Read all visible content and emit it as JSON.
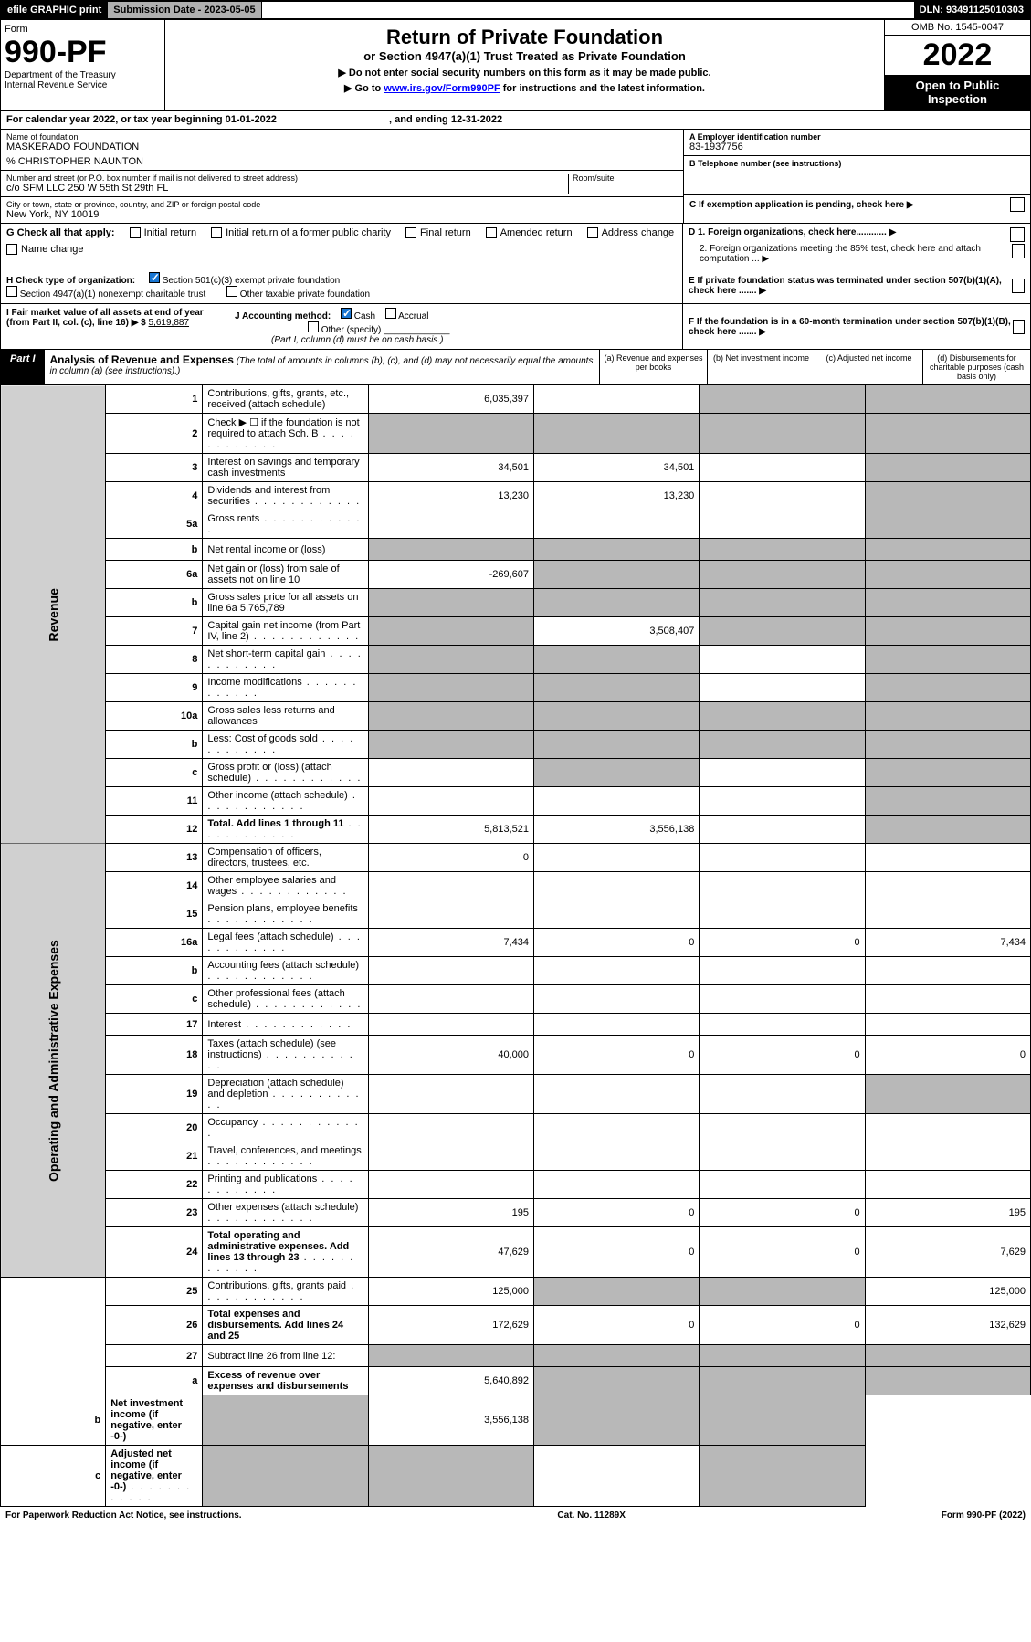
{
  "topbar": {
    "efile": "efile GRAPHIC print",
    "subdate_label": "Submission Date - 2023-05-05",
    "dln": "DLN: 93491125010303"
  },
  "header": {
    "form_label": "Form",
    "form_number": "990-PF",
    "dept": "Department of the Treasury",
    "irs": "Internal Revenue Service",
    "title": "Return of Private Foundation",
    "subtitle": "or Section 4947(a)(1) Trust Treated as Private Foundation",
    "note1": "▶ Do not enter social security numbers on this form as it may be made public.",
    "note2_pre": "▶ Go to ",
    "note2_link": "www.irs.gov/Form990PF",
    "note2_post": " for instructions and the latest information.",
    "omb": "OMB No. 1545-0047",
    "year": "2022",
    "open": "Open to Public Inspection"
  },
  "calendar": {
    "text_pre": "For calendar year 2022, or tax year beginning ",
    "begin": "01-01-2022",
    "mid": " , and ending ",
    "end": "12-31-2022"
  },
  "info": {
    "name_label": "Name of foundation",
    "name": "MASKERADO FOUNDATION",
    "care_of": "% CHRISTOPHER NAUNTON",
    "addr_label": "Number and street (or P.O. box number if mail is not delivered to street address)",
    "addr": "c/o SFM LLC 250 W 55th St 29th FL",
    "room_label": "Room/suite",
    "city_label": "City or town, state or province, country, and ZIP or foreign postal code",
    "city": "New York, NY  10019",
    "ein_label": "A Employer identification number",
    "ein": "83-1937756",
    "tel_label": "B Telephone number (see instructions)",
    "c_label": "C If exemption application is pending, check here ▶",
    "d1": "D 1. Foreign organizations, check here............ ▶",
    "d2": "2. Foreign organizations meeting the 85% test, check here and attach computation ... ▶",
    "e": "E  If private foundation status was terminated under section 507(b)(1)(A), check here ....... ▶",
    "f": "F  If the foundation is in a 60-month termination under section 507(b)(1)(B), check here ....... ▶"
  },
  "g": {
    "label": "G Check all that apply:",
    "opts": [
      "Initial return",
      "Initial return of a former public charity",
      "Final return",
      "Amended return",
      "Address change",
      "Name change"
    ]
  },
  "h": {
    "label": "H Check type of organization:",
    "opt1": "Section 501(c)(3) exempt private foundation",
    "opt2": "Section 4947(a)(1) nonexempt charitable trust",
    "opt3": "Other taxable private foundation"
  },
  "i": {
    "label": "I Fair market value of all assets at end of year (from Part II, col. (c), line 16) ▶ $",
    "value": "5,619,887"
  },
  "j": {
    "label": "J Accounting method:",
    "cash": "Cash",
    "accrual": "Accrual",
    "other": "Other (specify)",
    "note": "(Part I, column (d) must be on cash basis.)"
  },
  "part1": {
    "badge": "Part I",
    "title": "Analysis of Revenue and Expenses",
    "note": "(The total of amounts in columns (b), (c), and (d) may not necessarily equal the amounts in column (a) (see instructions).)",
    "col_a": "(a)   Revenue and expenses per books",
    "col_b": "(b)   Net investment income",
    "col_c": "(c)   Adjusted net income",
    "col_d": "(d)   Disbursements for charitable purposes (cash basis only)"
  },
  "sides": {
    "revenue": "Revenue",
    "opex": "Operating and Administrative Expenses"
  },
  "rows": [
    {
      "n": "1",
      "d": "Contributions, gifts, grants, etc., received (attach schedule)",
      "a": "6,035,397",
      "b": "",
      "c": "gray",
      "dd": "gray"
    },
    {
      "n": "2",
      "d": "Check ▶ ☐ if the foundation is not required to attach Sch. B",
      "a": "gray",
      "b": "gray",
      "c": "gray",
      "dd": "gray",
      "dots": true
    },
    {
      "n": "3",
      "d": "Interest on savings and temporary cash investments",
      "a": "34,501",
      "b": "34,501",
      "c": "",
      "dd": "gray"
    },
    {
      "n": "4",
      "d": "Dividends and interest from securities",
      "a": "13,230",
      "b": "13,230",
      "c": "",
      "dd": "gray",
      "dots": true
    },
    {
      "n": "5a",
      "d": "Gross rents",
      "a": "",
      "b": "",
      "c": "",
      "dd": "gray",
      "dots": true
    },
    {
      "n": "b",
      "d": "Net rental income or (loss)",
      "a": "gray",
      "b": "gray",
      "c": "gray",
      "dd": "gray"
    },
    {
      "n": "6a",
      "d": "Net gain or (loss) from sale of assets not on line 10",
      "a": "-269,607",
      "b": "gray",
      "c": "gray",
      "dd": "gray"
    },
    {
      "n": "b",
      "d": "Gross sales price for all assets on line 6a           5,765,789",
      "a": "gray",
      "b": "gray",
      "c": "gray",
      "dd": "gray"
    },
    {
      "n": "7",
      "d": "Capital gain net income (from Part IV, line 2)",
      "a": "gray",
      "b": "3,508,407",
      "c": "gray",
      "dd": "gray",
      "dots": true
    },
    {
      "n": "8",
      "d": "Net short-term capital gain",
      "a": "gray",
      "b": "gray",
      "c": "",
      "dd": "gray",
      "dots": true
    },
    {
      "n": "9",
      "d": "Income modifications",
      "a": "gray",
      "b": "gray",
      "c": "",
      "dd": "gray",
      "dots": true
    },
    {
      "n": "10a",
      "d": "Gross sales less returns and allowances",
      "a": "gray",
      "b": "gray",
      "c": "gray",
      "dd": "gray"
    },
    {
      "n": "b",
      "d": "Less: Cost of goods sold",
      "a": "gray",
      "b": "gray",
      "c": "gray",
      "dd": "gray",
      "dots": true
    },
    {
      "n": "c",
      "d": "Gross profit or (loss) (attach schedule)",
      "a": "",
      "b": "gray",
      "c": "",
      "dd": "gray",
      "dots": true
    },
    {
      "n": "11",
      "d": "Other income (attach schedule)",
      "a": "",
      "b": "",
      "c": "",
      "dd": "gray",
      "dots": true
    },
    {
      "n": "12",
      "d": "Total. Add lines 1 through 11",
      "a": "5,813,521",
      "b": "3,556,138",
      "c": "",
      "dd": "gray",
      "bold": true,
      "dots": true
    },
    {
      "n": "13",
      "d": "Compensation of officers, directors, trustees, etc.",
      "a": "0",
      "b": "",
      "c": "",
      "dd": ""
    },
    {
      "n": "14",
      "d": "Other employee salaries and wages",
      "a": "",
      "b": "",
      "c": "",
      "dd": "",
      "dots": true
    },
    {
      "n": "15",
      "d": "Pension plans, employee benefits",
      "a": "",
      "b": "",
      "c": "",
      "dd": "",
      "dots": true
    },
    {
      "n": "16a",
      "d": "Legal fees (attach schedule)",
      "a": "7,434",
      "b": "0",
      "c": "0",
      "dd": "7,434",
      "dots": true
    },
    {
      "n": "b",
      "d": "Accounting fees (attach schedule)",
      "a": "",
      "b": "",
      "c": "",
      "dd": "",
      "dots": true
    },
    {
      "n": "c",
      "d": "Other professional fees (attach schedule)",
      "a": "",
      "b": "",
      "c": "",
      "dd": "",
      "dots": true
    },
    {
      "n": "17",
      "d": "Interest",
      "a": "",
      "b": "",
      "c": "",
      "dd": "",
      "dots": true
    },
    {
      "n": "18",
      "d": "Taxes (attach schedule) (see instructions)",
      "a": "40,000",
      "b": "0",
      "c": "0",
      "dd": "0",
      "dots": true
    },
    {
      "n": "19",
      "d": "Depreciation (attach schedule) and depletion",
      "a": "",
      "b": "",
      "c": "",
      "dd": "gray",
      "dots": true
    },
    {
      "n": "20",
      "d": "Occupancy",
      "a": "",
      "b": "",
      "c": "",
      "dd": "",
      "dots": true
    },
    {
      "n": "21",
      "d": "Travel, conferences, and meetings",
      "a": "",
      "b": "",
      "c": "",
      "dd": "",
      "dots": true
    },
    {
      "n": "22",
      "d": "Printing and publications",
      "a": "",
      "b": "",
      "c": "",
      "dd": "",
      "dots": true
    },
    {
      "n": "23",
      "d": "Other expenses (attach schedule)",
      "a": "195",
      "b": "0",
      "c": "0",
      "dd": "195",
      "dots": true
    },
    {
      "n": "24",
      "d": "Total operating and administrative expenses. Add lines 13 through 23",
      "a": "47,629",
      "b": "0",
      "c": "0",
      "dd": "7,629",
      "bold": true,
      "dots": true
    },
    {
      "n": "25",
      "d": "Contributions, gifts, grants paid",
      "a": "125,000",
      "b": "gray",
      "c": "gray",
      "dd": "125,000",
      "dots": true
    },
    {
      "n": "26",
      "d": "Total expenses and disbursements. Add lines 24 and 25",
      "a": "172,629",
      "b": "0",
      "c": "0",
      "dd": "132,629",
      "bold": true
    },
    {
      "n": "27",
      "d": "Subtract line 26 from line 12:",
      "a": "gray",
      "b": "gray",
      "c": "gray",
      "dd": "gray"
    },
    {
      "n": "a",
      "d": "Excess of revenue over expenses and disbursements",
      "a": "5,640,892",
      "b": "gray",
      "c": "gray",
      "dd": "gray",
      "bold": true
    },
    {
      "n": "b",
      "d": "Net investment income (if negative, enter -0-)",
      "a": "gray",
      "b": "3,556,138",
      "c": "gray",
      "dd": "gray",
      "bold": true
    },
    {
      "n": "c",
      "d": "Adjusted net income (if negative, enter -0-)",
      "a": "gray",
      "b": "gray",
      "c": "",
      "dd": "gray",
      "bold": true,
      "dots": true
    }
  ],
  "footer": {
    "left": "For Paperwork Reduction Act Notice, see instructions.",
    "mid": "Cat. No. 11289X",
    "right": "Form 990-PF (2022)"
  }
}
